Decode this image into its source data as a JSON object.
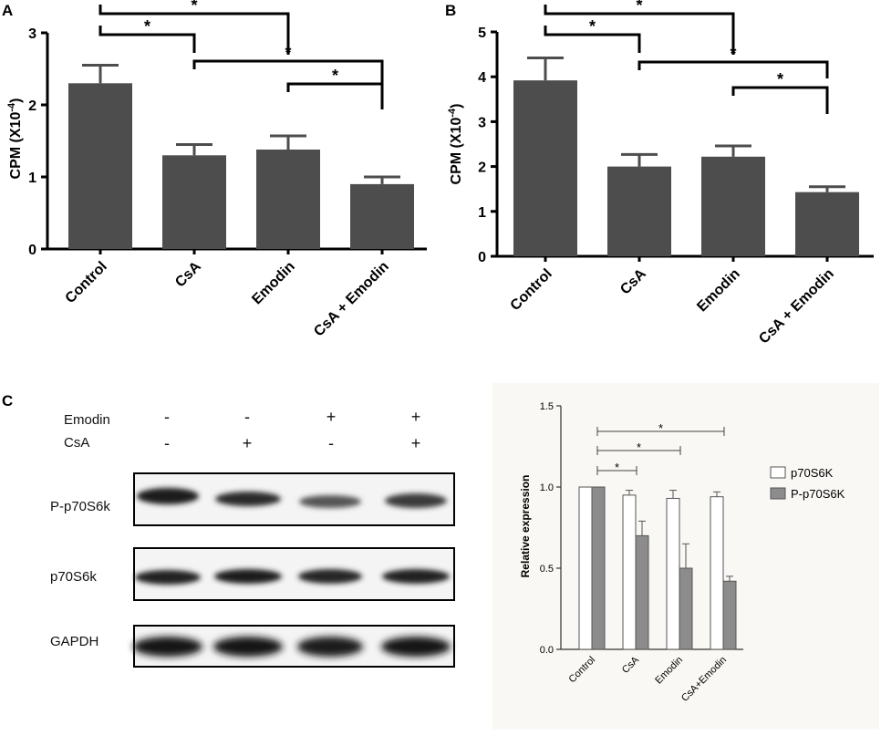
{
  "panels": {
    "a": {
      "letter": "A",
      "ylabel": "CPM (X10",
      "ylabel_exp": "-4",
      "ylabel_close": ")",
      "star": "*"
    },
    "b": {
      "letter": "B",
      "ylabel": "CPM (X10",
      "ylabel_exp": "-4",
      "ylabel_close": ")",
      "star": "*"
    },
    "c": {
      "letter": "C",
      "row_labels": {
        "emodin": "Emodin",
        "csa": "CsA"
      },
      "emodin_signs": [
        "-",
        "-",
        "+",
        "+"
      ],
      "csa_signs": [
        "-",
        "+",
        "-",
        "+"
      ],
      "band_labels": [
        "P-p70S6k",
        "p70S6k",
        "GAPDH"
      ]
    }
  },
  "chart_data": [
    {
      "id": "A",
      "type": "bar",
      "categories": [
        "Control",
        "CsA",
        "Emodin",
        "CsA + Emodin"
      ],
      "values": [
        2.3,
        1.3,
        1.38,
        0.9
      ],
      "errors": [
        0.25,
        0.15,
        0.19,
        0.1
      ],
      "ylabel": "CPM (X10-4)",
      "ylim": [
        0,
        3
      ],
      "yticks": [
        "0",
        "1",
        "2",
        "3"
      ],
      "bar_color": "#4d4d4d",
      "significance": [
        {
          "from": 0,
          "to": 1,
          "label": "*"
        },
        {
          "from": 0,
          "to": 2,
          "label": "*"
        },
        {
          "from": 1,
          "to": 3,
          "label": "*"
        },
        {
          "from": 2,
          "to": 3,
          "label": "*"
        }
      ]
    },
    {
      "id": "B",
      "type": "bar",
      "categories": [
        "Control",
        "CsA",
        "Emodin",
        "CsA + Emodin"
      ],
      "values": [
        3.92,
        2.0,
        2.22,
        1.43
      ],
      "errors": [
        0.5,
        0.27,
        0.24,
        0.12
      ],
      "ylabel": "CPM (X10-4)",
      "ylim": [
        0,
        5
      ],
      "yticks": [
        "0",
        "1",
        "2",
        "3",
        "4",
        "5"
      ],
      "bar_color": "#4d4d4d",
      "significance": [
        {
          "from": 0,
          "to": 1,
          "label": "*"
        },
        {
          "from": 0,
          "to": 2,
          "label": "*"
        },
        {
          "from": 1,
          "to": 3,
          "label": "*"
        },
        {
          "from": 2,
          "to": 3,
          "label": "*"
        }
      ]
    },
    {
      "id": "C-right",
      "type": "bar",
      "categories": [
        "Control",
        "CsA",
        "Emodin",
        "CsA+Emodin"
      ],
      "series": [
        {
          "name": "p70S6K",
          "values": [
            1.0,
            0.95,
            0.93,
            0.94
          ],
          "errors": [
            0,
            0.03,
            0.05,
            0.03
          ],
          "color": "#ffffff"
        },
        {
          "name": "P-p70S6K",
          "values": [
            1.0,
            0.7,
            0.5,
            0.42
          ],
          "errors": [
            0,
            0.09,
            0.15,
            0.03
          ],
          "color": "#8c8c8c"
        }
      ],
      "ylabel": "Relative expression",
      "ylim": [
        0,
        1.5
      ],
      "yticks": [
        "0.0",
        "0.5",
        "1.0",
        "1.5"
      ],
      "significance": [
        {
          "from": 0,
          "to": 1,
          "label": "*"
        },
        {
          "from": 0,
          "to": 2,
          "label": "*"
        },
        {
          "from": 0,
          "to": 3,
          "label": "*"
        }
      ]
    }
  ]
}
